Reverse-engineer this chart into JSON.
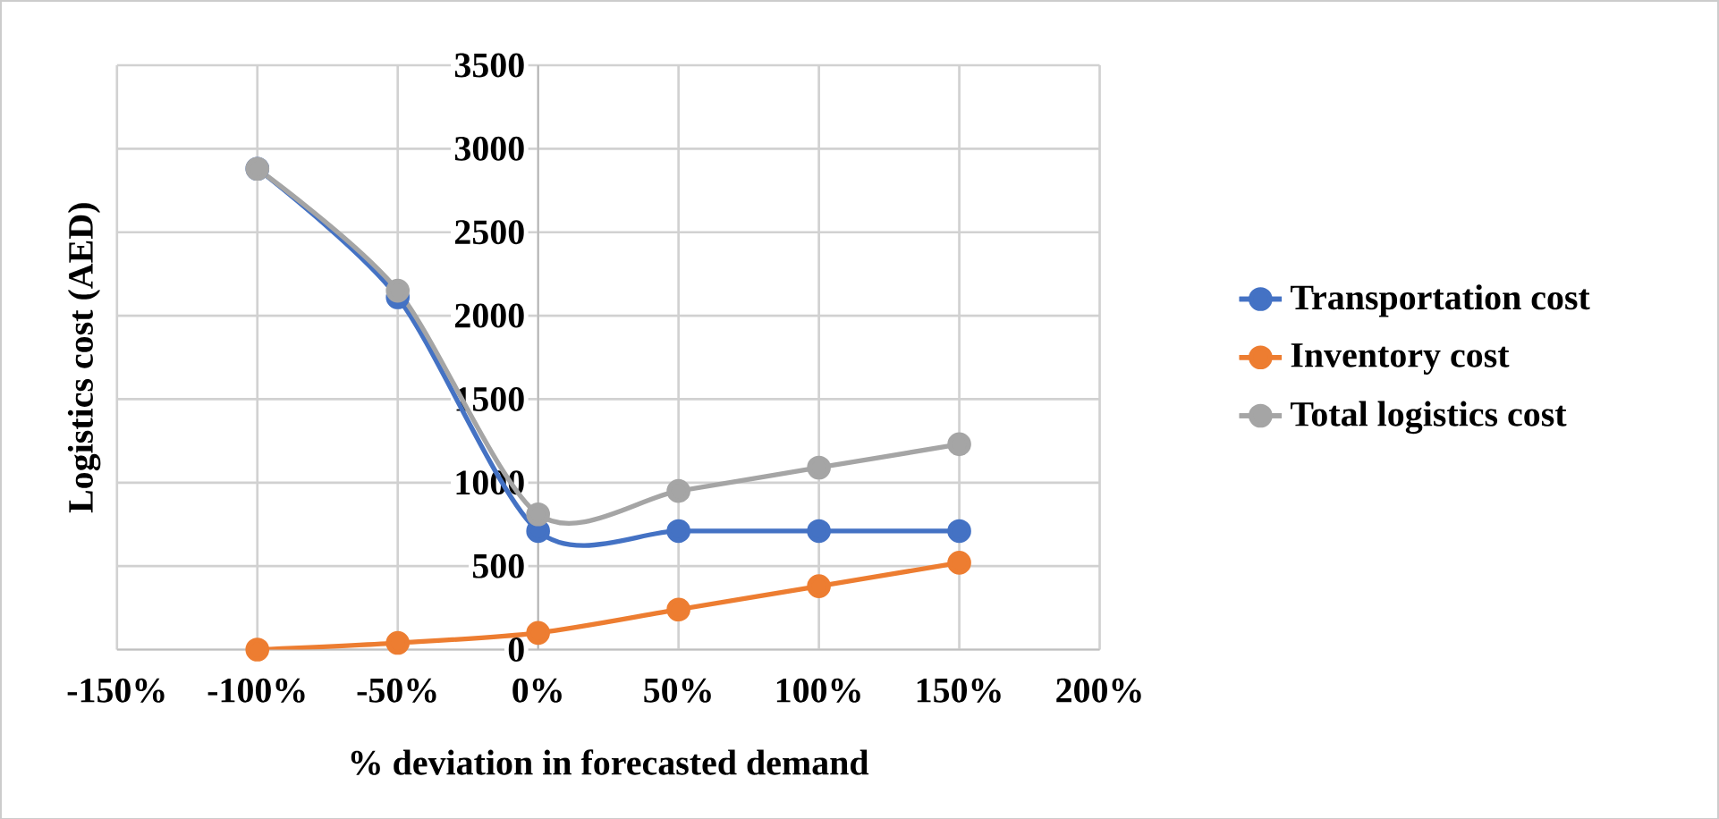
{
  "chart_data": {
    "type": "line",
    "xlabel": "% deviation in forecasted demand",
    "ylabel": "Logistics cost (AED)",
    "x": [
      -100,
      -50,
      0,
      50,
      100,
      150
    ],
    "series": [
      {
        "name": "Transportation cost",
        "color": "#4472c4",
        "values": [
          2880,
          2110,
          710,
          710,
          710,
          710
        ]
      },
      {
        "name": "Inventory cost",
        "color": "#ed7d31",
        "values": [
          0,
          40,
          100,
          240,
          380,
          520
        ]
      },
      {
        "name": "Total logistics cost",
        "color": "#a5a5a5",
        "values": [
          2880,
          2150,
          810,
          950,
          1090,
          1230
        ]
      }
    ],
    "xlim": [
      -150,
      200
    ],
    "ylim": [
      0,
      3500
    ],
    "xticks": [
      {
        "value": -150,
        "label": "-150%"
      },
      {
        "value": -100,
        "label": "-100%"
      },
      {
        "value": -50,
        "label": "-50%"
      },
      {
        "value": 0,
        "label": "0%"
      },
      {
        "value": 50,
        "label": "50%"
      },
      {
        "value": 100,
        "label": "100%"
      },
      {
        "value": 150,
        "label": "150%"
      },
      {
        "value": 200,
        "label": "200%"
      }
    ],
    "yticks": [
      0,
      500,
      1000,
      1500,
      2000,
      2500,
      3000,
      3500
    ],
    "grid": true,
    "legend": "right",
    "marker": "circle",
    "line_style": "solid"
  }
}
